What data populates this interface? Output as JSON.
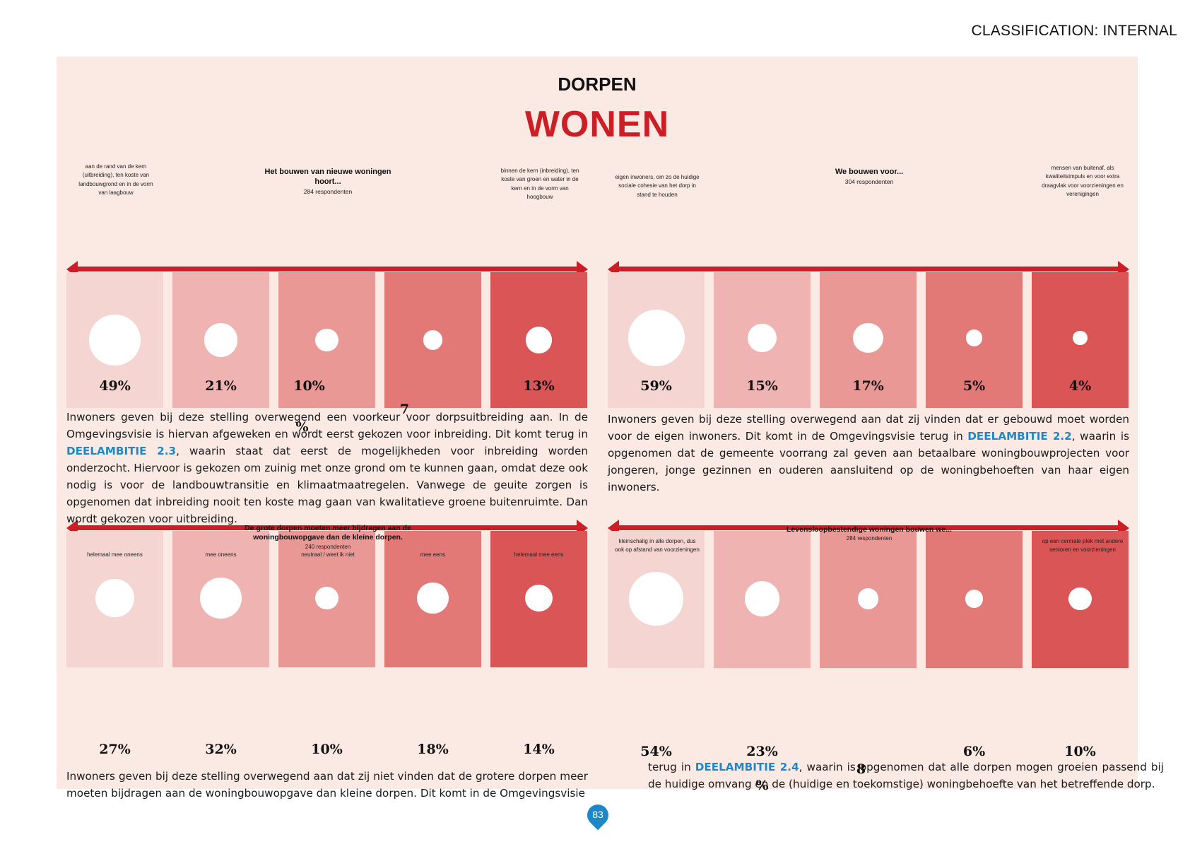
{
  "header": {
    "classification": "CLASSIFICATION: INTERNAL"
  },
  "section": {
    "kicker": "DORPEN",
    "title": "WONEN"
  },
  "colors": {
    "accent": "#cc1f25",
    "link": "#1e88c7",
    "panel": "#fbe9e4",
    "col1": "#f4d5d1",
    "col2": "#efb4b1",
    "col3": "#e99895",
    "col4": "#e37977",
    "col5": "#d95556"
  },
  "charts": [
    {
      "title": "Het bouwen van nieuwe woningen hoort...",
      "subtitle": "284 respondenten",
      "left_pole": "aan de rand van de kern (uitbreiding), ten koste van landbouwgrond en in de vorm van laagbouw",
      "right_pole": "binnen de kern (inbreiding), ten koste van groen en water in de kern en in de vorm van hoogbouw",
      "values": [
        "49%",
        "21%",
        "10%",
        "7",
        "13%"
      ],
      "extra_label": "%",
      "dot_share": [
        49,
        21,
        10,
        7,
        13
      ]
    },
    {
      "title": "We bouwen voor...",
      "subtitle": "304 respondenten",
      "left_pole": "eigen inwoners, om zo de huidige sociale cohesie van het dorp in stand te houden",
      "right_pole": "mensen van buitenaf, als kwaliteitsimpuls en voor extra draagvlak voor voorzieningen en verenigingen",
      "values": [
        "59%",
        "15%",
        "17%",
        "5%",
        "4%"
      ],
      "dot_share": [
        59,
        15,
        17,
        5,
        4
      ]
    },
    {
      "title": "De grote dorpen moeten meer bijdragen aan de woningbouwopgave dan de kleine dorpen.",
      "subtitle": "240 respondenten",
      "subtitle2": "neutraal / weet ik niet",
      "labels": [
        "helemaal mee oneens",
        "mee oneens",
        "",
        "mee eens",
        "helemaal mee eens"
      ],
      "values": [
        "27%",
        "32%",
        "10%",
        "18%",
        "14%"
      ],
      "dot_share": [
        27,
        32,
        10,
        18,
        14
      ]
    },
    {
      "title": "Levensloopbestendige woningen bouwen we...",
      "subtitle": "284 respondenten",
      "left_pole": "kleinschalig in alle dorpen, dus ook op afstand van voorzieningen",
      "right_pole": "op een centrale plek met andere senioren en voorzieningen",
      "values": [
        "54%",
        "23%",
        "8",
        "6%",
        "10%"
      ],
      "extra_label": "%",
      "dot_share": [
        54,
        23,
        8,
        6,
        10
      ]
    }
  ],
  "paragraphs": {
    "p1_a": "Inwoners geven bij deze stelling overwegend een voorkeur voor dorpsuitbreiding aan. In de Omgevingsvisie is hiervan afgeweken en wordt eerst gekozen voor inbreiding. Dit komt terug in ",
    "p1_link": "DEELAMBITIE 2.3",
    "p1_b": ", waarin staat dat eerst de mogelijkheden voor inbreiding worden onderzocht. Hiervoor is gekozen om zuinig met onze grond om te kunnen gaan, omdat deze ook nodig is voor de landbouwtransitie en klimaatmaatregelen. Vanwege de geuite zorgen is opgenomen dat inbreiding nooit ten koste mag gaan van kwalitatieve groene buitenruimte. Dan wordt gekozen voor uitbreiding.",
    "p2_a": "Inwoners geven bij deze stelling overwegend aan dat zij vinden dat er gebouwd moet worden voor de eigen inwoners. Dit komt in de Omgevingsvisie terug in ",
    "p2_link": "DEELAMBITIE 2.2",
    "p2_b": ", waarin is opgenomen dat de gemeente voorrang zal geven aan betaalbare woningbouwprojecten voor jongeren, jonge gezinnen en ouderen aansluitend op de woningbehoeften van haar eigen inwoners.",
    "p3": "Inwoners geven bij deze stelling overwegend aan dat zij niet vinden dat de grotere dorpen meer moeten bijdragen aan de woningbouwopgave dan kleine dorpen. Dit komt in de Omgevingsvisie",
    "p4_a": "terug in ",
    "p4_link": "DEELAMBITIE 2.4",
    "p4_b": ", waarin is opgenomen dat alle dorpen mogen groeien passend bij de huidige omvang en de (huidige en toekomstige) woningbehoefte van het betreffende dorp."
  },
  "footer": {
    "page_number": "83"
  }
}
